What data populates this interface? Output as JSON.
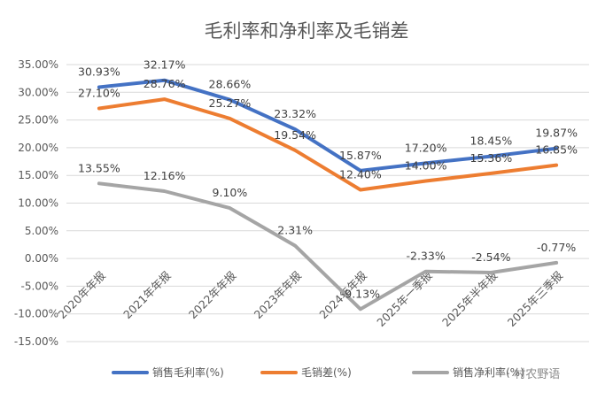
{
  "chart_data": {
    "type": "line",
    "title": "毛利率和净利率及毛销差",
    "categories": [
      "2020年年报",
      "2021年年报",
      "2022年年报",
      "2023年年报",
      "2024年年报",
      "2025年一季报",
      "2025年半年报",
      "2025年三季报"
    ],
    "series": [
      {
        "name": "销售毛利率(%)",
        "color": "#4472C4",
        "values": [
          30.93,
          32.17,
          28.66,
          23.32,
          15.87,
          17.2,
          18.45,
          19.87
        ],
        "labels": [
          "30.93%",
          "32.17%",
          "28.66%",
          "23.32%",
          "15.87%",
          "17.20%",
          "18.45%",
          "19.87%"
        ]
      },
      {
        "name": "毛销差(%)",
        "color": "#ED7D31",
        "values": [
          27.1,
          28.76,
          25.27,
          19.54,
          12.4,
          14.0,
          15.36,
          16.85
        ],
        "labels": [
          "27.10%",
          "28.76%",
          "25.27%",
          "19.54%",
          "12.40%",
          "14.00%",
          "15.36%",
          "16.85%"
        ]
      },
      {
        "name": "销售净利率(%)",
        "color": "#A5A5A5",
        "values": [
          13.55,
          12.16,
          9.1,
          2.31,
          -9.13,
          -2.33,
          -2.54,
          -0.77
        ],
        "labels": [
          "13.55%",
          "12.16%",
          "9.10%",
          "2.31%",
          "-9.13%",
          "-2.33%",
          "-2.54%",
          "-0.77%"
        ]
      }
    ],
    "ylim": [
      -15,
      35
    ],
    "yticks": [
      "35.00%",
      "30.00%",
      "25.00%",
      "20.00%",
      "15.00%",
      "10.00%",
      "5.00%",
      "0.00%",
      "-5.00%",
      "-10.00%",
      "-15.00%"
    ],
    "ytick_values": [
      35,
      30,
      25,
      20,
      15,
      10,
      5,
      0,
      -5,
      -10,
      -15
    ],
    "grid": true,
    "legend_position": "bottom"
  },
  "watermark": "· 村农野语"
}
